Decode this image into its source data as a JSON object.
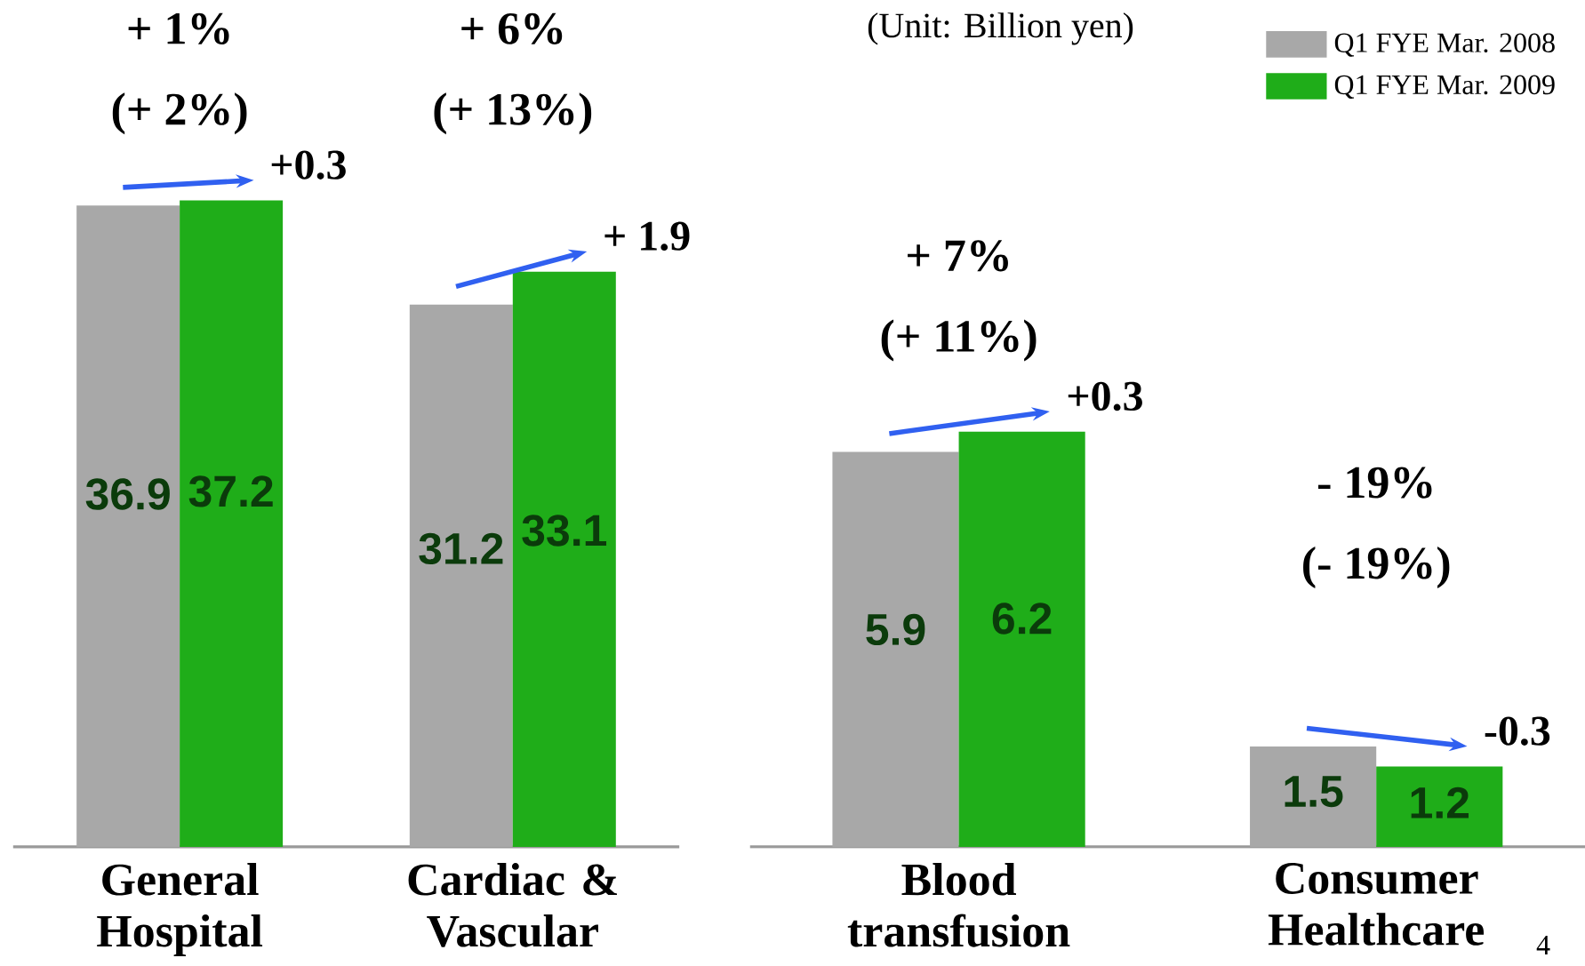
{
  "chart_data": [
    {
      "type": "bar",
      "categories": [
        "General Hospital",
        "Cardiac & Vascular"
      ],
      "series": [
        {
          "color": "#a8a8a8",
          "values": [
            36.9,
            31.2
          ]
        },
        {
          "color": "#1fad19",
          "values": [
            37.2,
            33.1
          ]
        }
      ],
      "data_labels": true,
      "annotations": [
        "+ 1%",
        "(+ 2%)",
        "+0.3",
        "+ 6%",
        "(+ 13%)",
        "+ 1.9"
      ]
    },
    {
      "type": "bar",
      "categories": [
        "Blood transfusion",
        "Consumer Healthcare"
      ],
      "subtitle": "(Unit: Billion yen)",
      "series": [
        {
          "name": "Q1 FYE Mar. 2008",
          "color": "#a8a8a8",
          "values": [
            5.9,
            1.5
          ]
        },
        {
          "name": "Q1 FYE Mar. 2009",
          "color": "#1fad19",
          "values": [
            6.2,
            1.2
          ]
        }
      ],
      "data_labels": true,
      "legend": "top right",
      "annotations": [
        "+ 7%",
        "(+ 11%)",
        "+0.3",
        "- 19%",
        "(- 19%)",
        "-0.3",
        "4"
      ]
    }
  ]
}
